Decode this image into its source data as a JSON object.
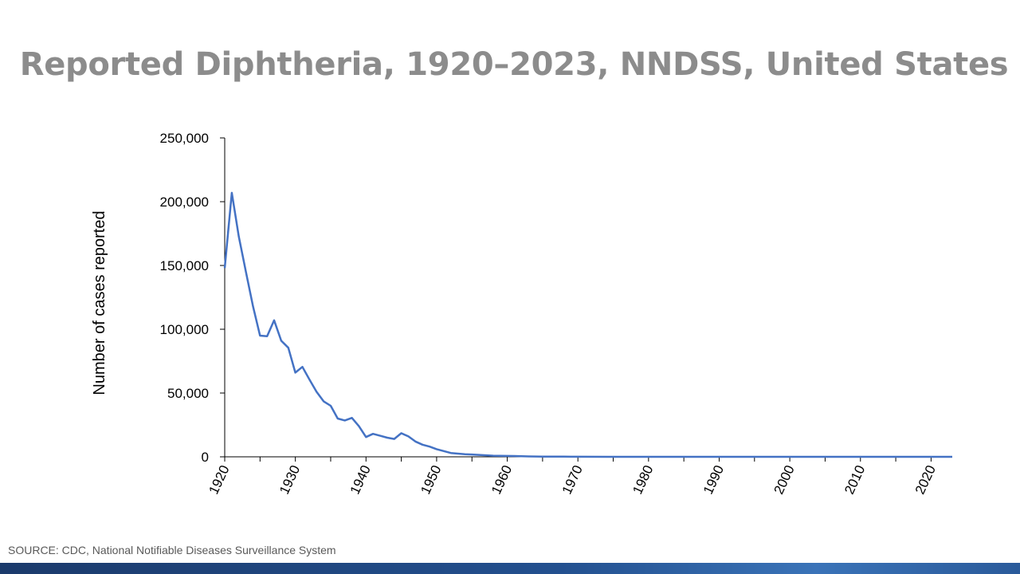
{
  "slide": {
    "title": "Reported Diphtheria, 1920–2023, NNDSS, United States",
    "source": "SOURCE: CDC, National Notifiable Diseases Surveillance System"
  },
  "chart_data": {
    "type": "line",
    "title": "Reported Diphtheria, 1920–2023, NNDSS, United States",
    "xlabel": "",
    "ylabel": "Number of cases reported",
    "xlim": [
      1920,
      2023
    ],
    "ylim": [
      0,
      250000
    ],
    "y_ticks": [
      "0",
      "50,000",
      "100,000",
      "150,000",
      "200,000",
      "250,000"
    ],
    "x_ticks": [
      "1920",
      "1930",
      "1940",
      "1950",
      "1960",
      "1970",
      "1980",
      "1990",
      "2000",
      "2010",
      "2020"
    ],
    "grid": false,
    "legend": "none",
    "line_color": "#4472c4",
    "series": [
      {
        "x": [
          1920,
          1921,
          1922,
          1923,
          1924,
          1925,
          1926,
          1927,
          1928,
          1929,
          1930,
          1931,
          1932,
          1933,
          1934,
          1935,
          1936,
          1937,
          1938,
          1939,
          1940,
          1941,
          1942,
          1943,
          1944,
          1945,
          1946,
          1947,
          1948,
          1949,
          1950,
          1951,
          1952,
          1953,
          1954,
          1955,
          1956,
          1957,
          1958,
          1959,
          1960,
          1961,
          1962,
          1963,
          1964,
          1965,
          1966,
          1967,
          1968,
          1969,
          1970,
          1975,
          1980,
          1985,
          1990,
          1995,
          2000,
          2005,
          2010,
          2015,
          2020,
          2023
        ],
        "values": [
          147991,
          206939,
          172559,
          145000,
          118000,
          95000,
          94500,
          107000,
          91000,
          85500,
          66000,
          70500,
          60500,
          51000,
          43500,
          40000,
          30000,
          28500,
          30500,
          24000,
          15500,
          18000,
          16500,
          15000,
          14000,
          18500,
          16000,
          12000,
          9500,
          8000,
          6000,
          4500,
          3000,
          2500,
          2000,
          1800,
          1500,
          1200,
          900,
          800,
          700,
          600,
          450,
          300,
          250,
          200,
          150,
          120,
          100,
          80,
          50,
          30,
          20,
          10,
          5,
          3,
          2,
          1,
          1,
          2,
          3,
          5
        ]
      }
    ]
  }
}
